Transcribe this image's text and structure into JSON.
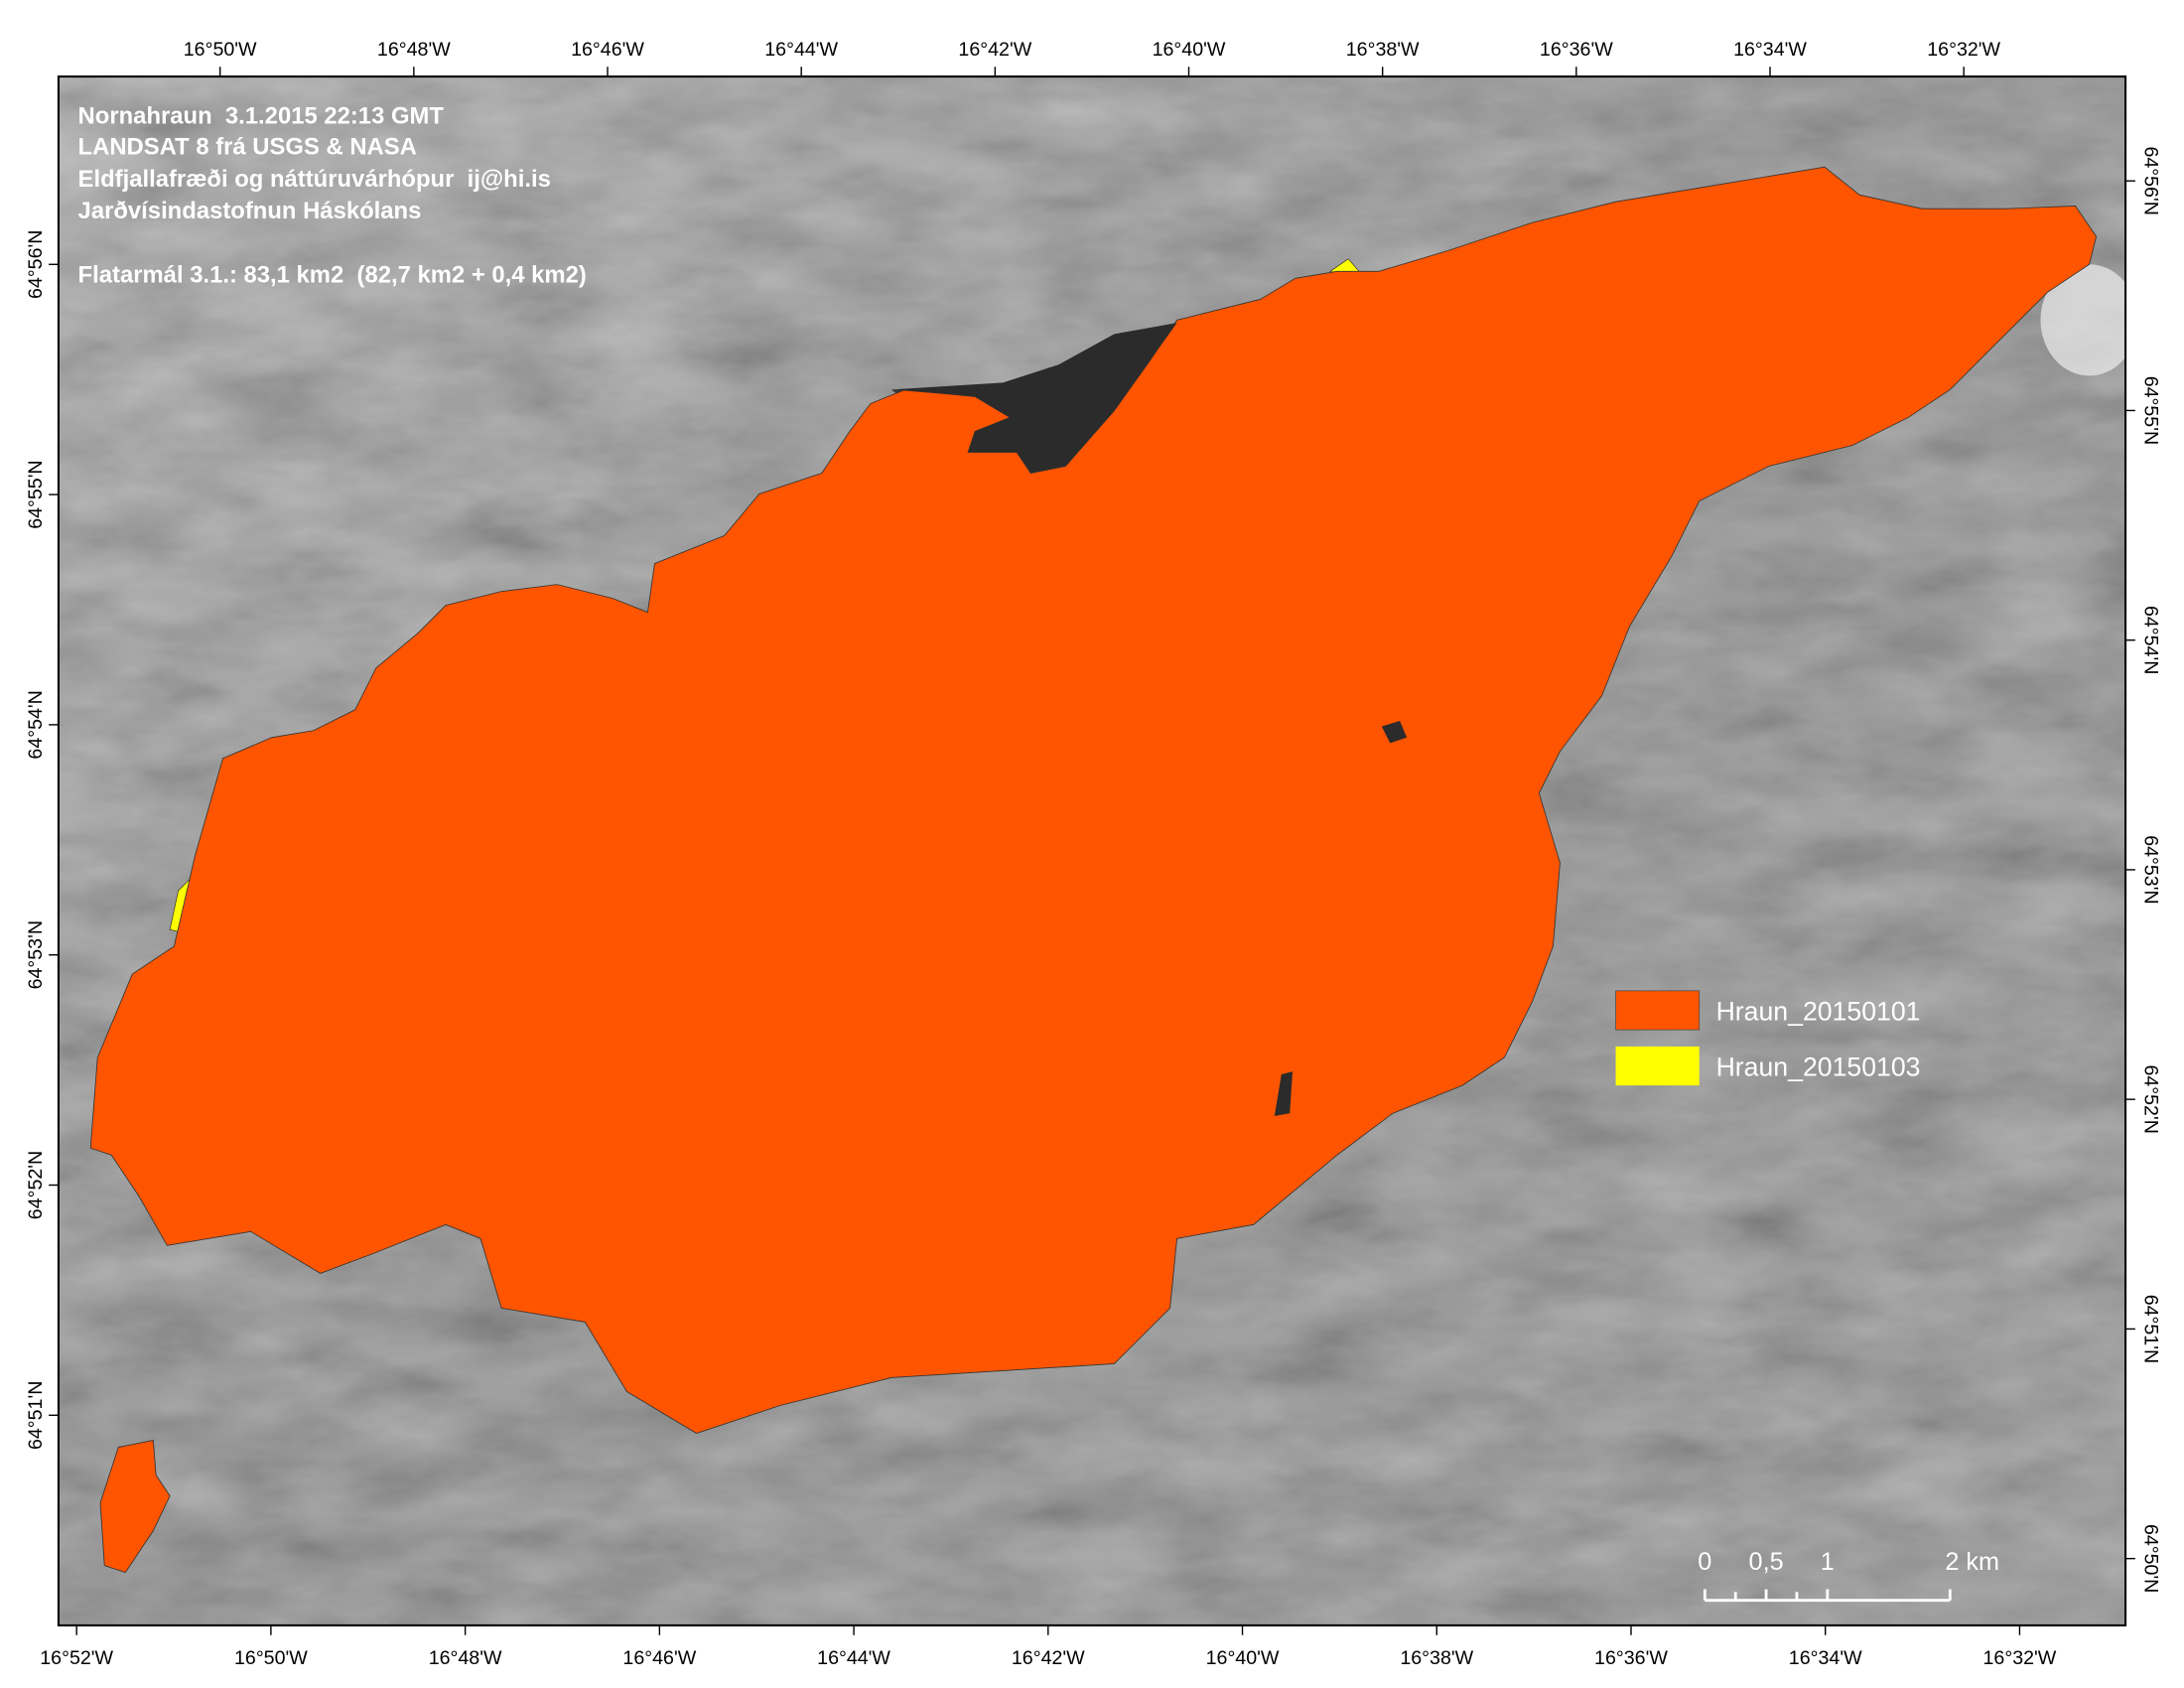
{
  "header": {
    "lines": [
      "Nornahraun  3.1.2015 22:13 GMT",
      "LANDSAT 8 frá USGS & NASA",
      "Eldfjallafræði og náttúruvárhópur  ij@hi.is",
      "Jarðvísindastofnun Háskólans"
    ],
    "area": "Flatarmál 3.1.: 83,1 km2  (82,7 km2 + 0,4 km2)"
  },
  "legend": [
    {
      "label": "Hraun_20150101",
      "color": "#ff5500"
    },
    {
      "label": "Hraun_20150103",
      "color": "#ffff00"
    }
  ],
  "scale_bar": {
    "labels": [
      "0",
      "0,5",
      "1",
      "2 km"
    ]
  },
  "graticule": {
    "top": [
      "16°50'W",
      "16°48'W",
      "16°46'W",
      "16°44'W",
      "16°42'W",
      "16°40'W",
      "16°38'W",
      "16°36'W",
      "16°34'W",
      "16°32'W"
    ],
    "bottom": [
      "16°52'W",
      "16°50'W",
      "16°48'W",
      "16°46'W",
      "16°44'W",
      "16°42'W",
      "16°40'W",
      "16°38'W",
      "16°36'W",
      "16°34'W",
      "16°32'W"
    ],
    "left": [
      "64°56'N",
      "64°55'N",
      "64°54'N",
      "64°53'N",
      "64°52'N",
      "64°51'N"
    ],
    "right": [
      "64°56'N",
      "64°55'N",
      "64°54'N",
      "64°53'N",
      "64°52'N",
      "64°51'N",
      "64°50'N"
    ]
  }
}
